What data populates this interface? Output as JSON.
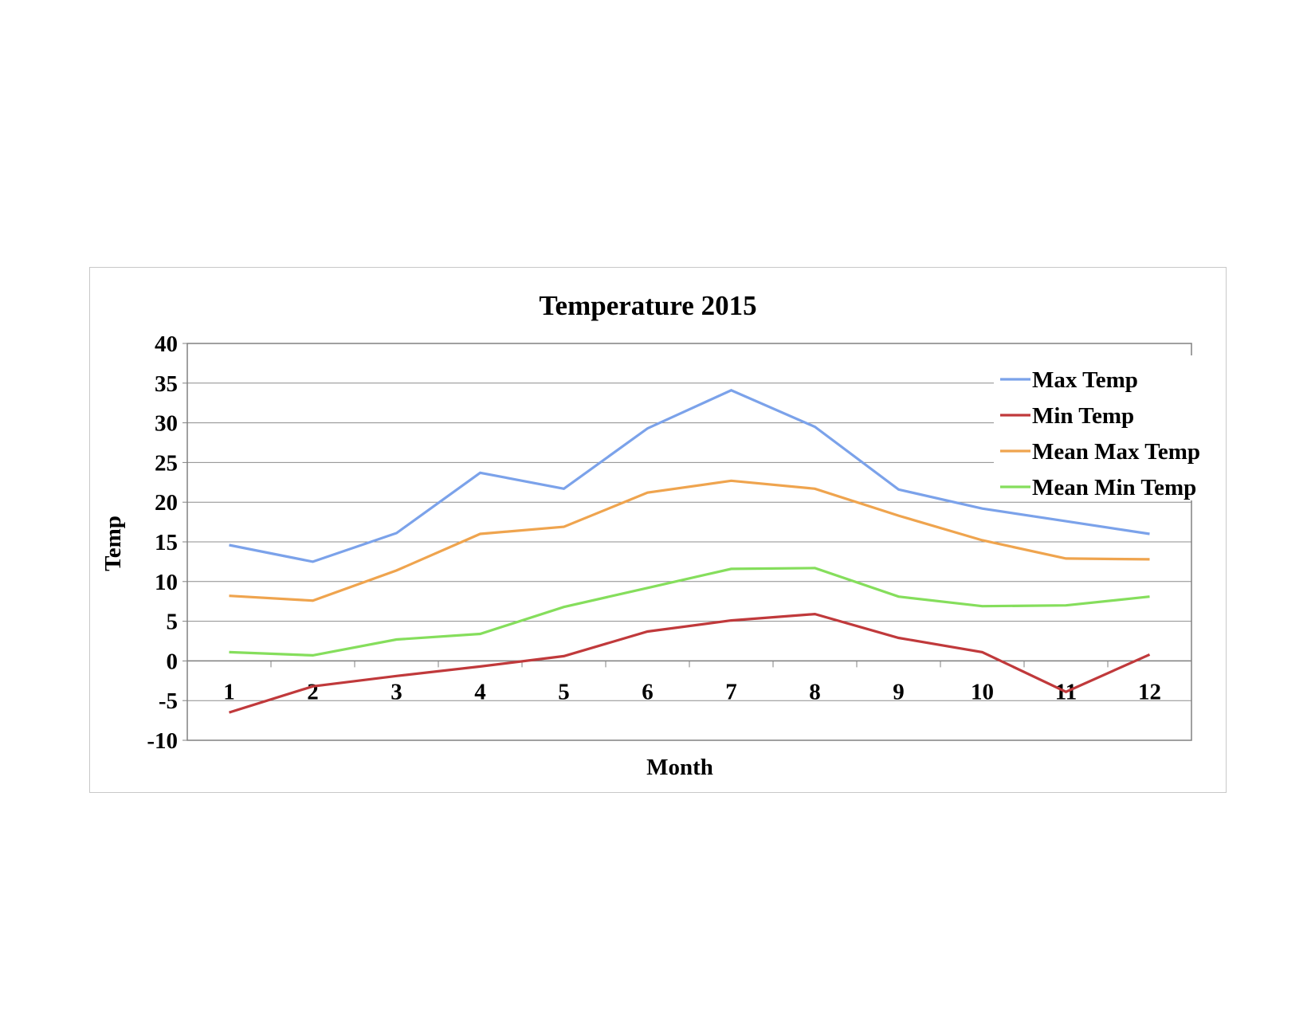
{
  "chart_data": {
    "type": "line",
    "title": "Temperature 2015",
    "xlabel": "Month",
    "ylabel": "Temp",
    "categories": [
      "1",
      "2",
      "3",
      "4",
      "5",
      "6",
      "7",
      "8",
      "9",
      "10",
      "11",
      "12"
    ],
    "ylim": [
      -10,
      40
    ],
    "yticks": [
      "40",
      "35",
      "30",
      "25",
      "20",
      "15",
      "10",
      "5",
      "0",
      "-5",
      "-10"
    ],
    "grid": true,
    "legend_position": "top-right",
    "series": [
      {
        "name": "Max Temp",
        "color": "#7ba2ea",
        "values": [
          14.6,
          12.5,
          16.1,
          23.7,
          21.7,
          29.3,
          34.1,
          29.5,
          21.6,
          19.2,
          17.6,
          16.0
        ]
      },
      {
        "name": "Min Temp",
        "color": "#c0393b",
        "values": [
          -6.5,
          -3.2,
          -1.9,
          -0.7,
          0.6,
          3.7,
          5.1,
          5.9,
          2.9,
          1.1,
          -3.9,
          0.8
        ]
      },
      {
        "name": "Mean Max Temp",
        "color": "#efa44e",
        "values": [
          8.2,
          7.6,
          11.4,
          16.0,
          16.9,
          21.2,
          22.7,
          21.7,
          18.3,
          15.2,
          12.9,
          12.8
        ]
      },
      {
        "name": "Mean Min Temp",
        "color": "#85de5c",
        "values": [
          1.1,
          0.7,
          2.7,
          3.4,
          6.8,
          9.2,
          11.6,
          11.7,
          8.1,
          6.9,
          7.0,
          8.1
        ]
      }
    ]
  }
}
